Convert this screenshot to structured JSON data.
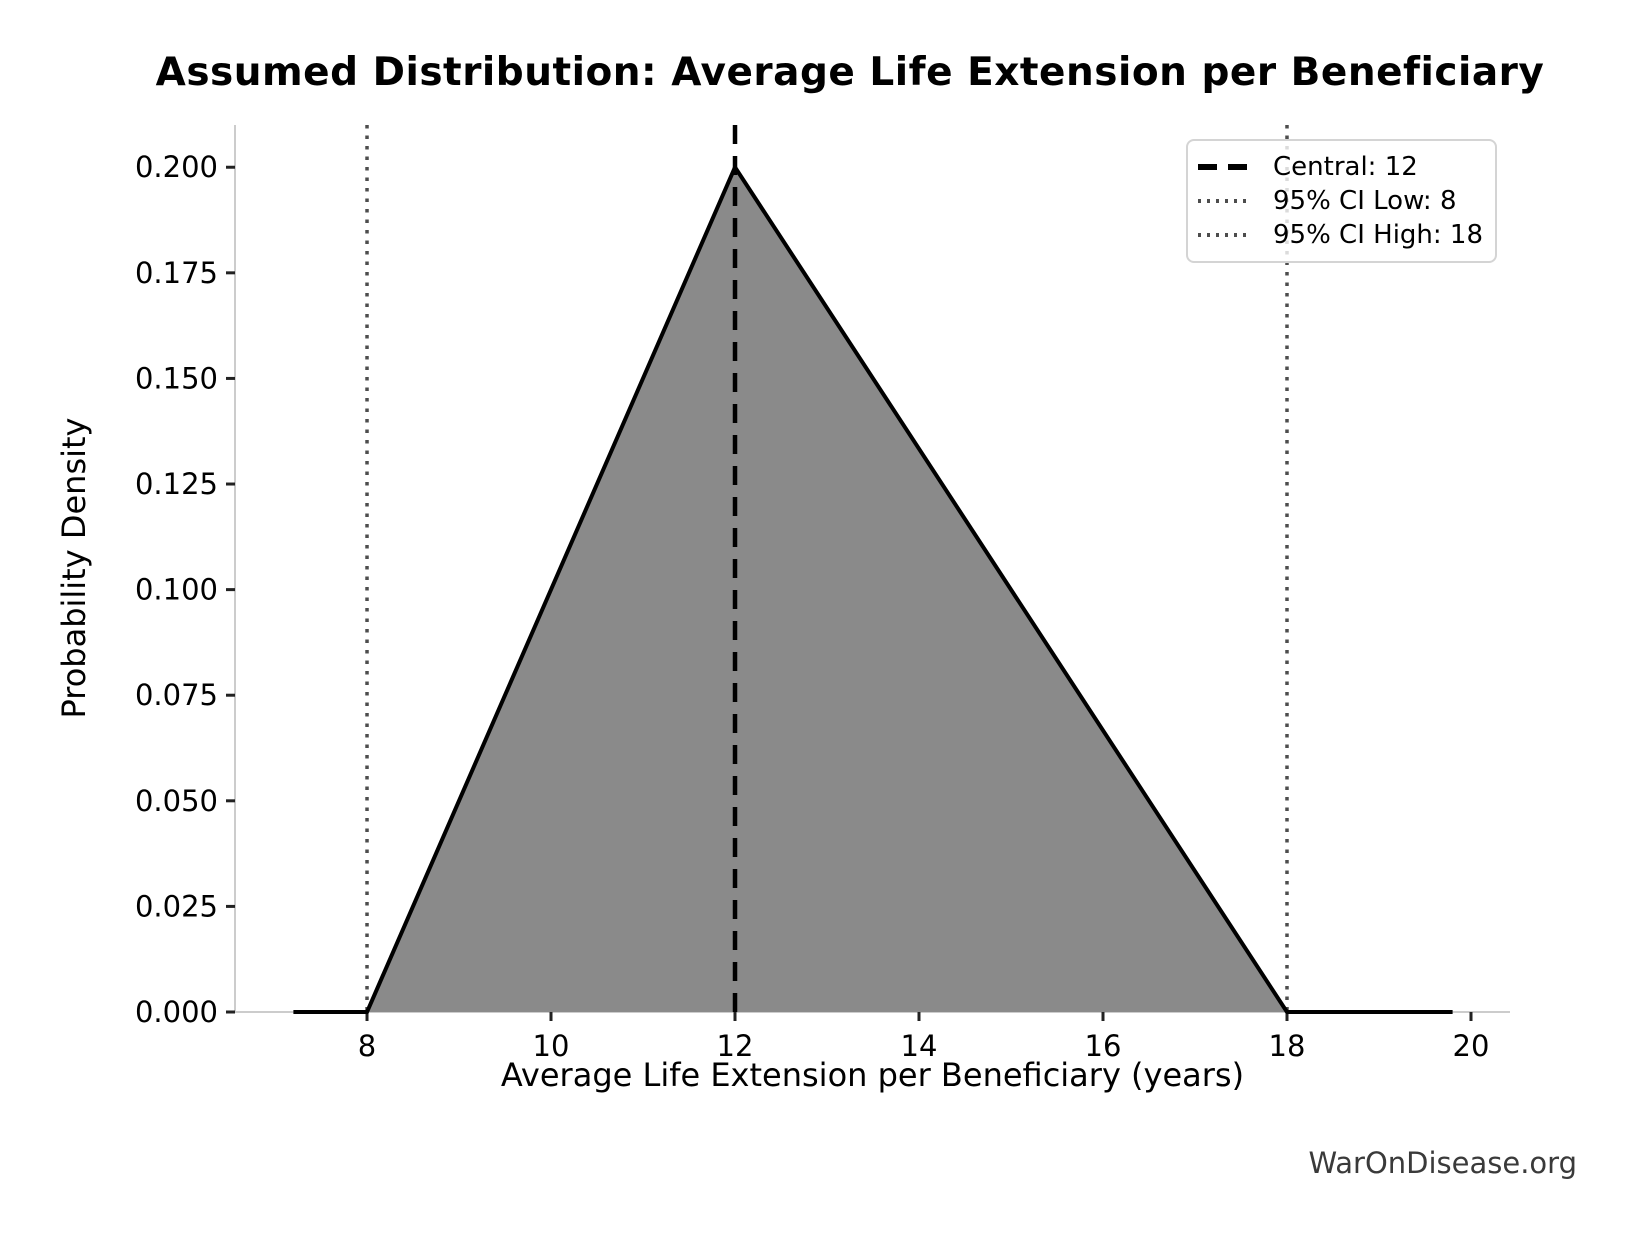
{
  "watermark": "WarOnDisease.org",
  "colors": {
    "background": "#ffffff",
    "spine": "#cccccc",
    "tick": "#222222",
    "fill_gray": "#8a8a8a",
    "line_black": "#000000",
    "ci_gray": "#4d4d4d"
  },
  "chart_data": {
    "type": "area",
    "title": "Assumed Distribution: Average Life Extension per Beneficiary",
    "xlabel": "Average Life Extension per Beneficiary (years)",
    "ylabel": "Probability Density",
    "x_ticks": [
      "8",
      "10",
      "12",
      "14",
      "16",
      "18",
      "20"
    ],
    "y_ticks": [
      "0.000",
      "0.025",
      "0.050",
      "0.075",
      "0.100",
      "0.125",
      "0.150",
      "0.175",
      "0.200"
    ],
    "xlim": [
      6.565,
      20.424
    ],
    "ylim": [
      0,
      0.21
    ],
    "grid": false,
    "legend_position": "upper right",
    "series": [
      {
        "name": "triangular-density",
        "shape": "triangular",
        "x": [
          7.2,
          8,
          12,
          18,
          19.8
        ],
        "y": [
          0,
          0,
          0.2,
          0,
          0
        ],
        "peak": {
          "x": 12,
          "y": 0.2
        },
        "fill_color": "#8a8a8a",
        "line_color": "#000000"
      }
    ],
    "reference_lines": [
      {
        "x": 12,
        "label": "Central: 12",
        "style": "dashed",
        "color": "#000000"
      },
      {
        "x": 8,
        "label": "95% CI Low: 8",
        "style": "dotted",
        "color": "#4d4d4d"
      },
      {
        "x": 18,
        "label": "95% CI High: 18",
        "style": "dotted",
        "color": "#4d4d4d"
      }
    ]
  }
}
